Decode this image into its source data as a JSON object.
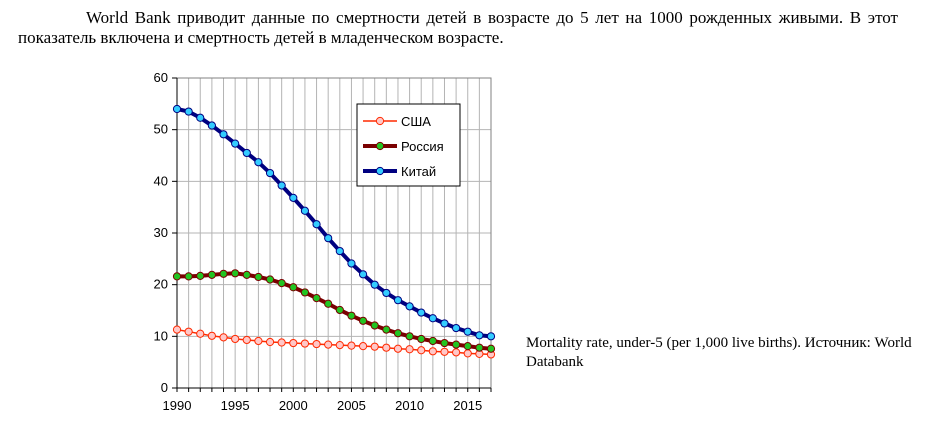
{
  "intro_text": "World Bank приводит данные по смертности детей в возрасте до 5 лет на 1000 рожденных живыми. В этот показатель включена и смертность детей в младенческом возрасте.",
  "caption": "Mortality rate, under-5 (per 1,000 live births). Источник: World Databank",
  "chart_data": {
    "type": "line",
    "title": "",
    "xlabel": "",
    "ylabel": "",
    "xlim": [
      1990,
      2017
    ],
    "ylim": [
      0,
      60
    ],
    "x_ticks": [
      1990,
      1995,
      2000,
      2005,
      2010,
      2015
    ],
    "y_ticks": [
      0,
      10,
      20,
      30,
      40,
      50,
      60
    ],
    "grid": true,
    "legend_position": "top-right",
    "x": [
      1990,
      1991,
      1992,
      1993,
      1994,
      1995,
      1996,
      1997,
      1998,
      1999,
      2000,
      2001,
      2002,
      2003,
      2004,
      2005,
      2006,
      2007,
      2008,
      2009,
      2010,
      2011,
      2012,
      2013,
      2014,
      2015,
      2016,
      2017
    ],
    "series": [
      {
        "name": "США",
        "line_color": "#ff2a00",
        "marker_fill": "#ffc8c8",
        "values": [
          11.3,
          10.9,
          10.5,
          10.1,
          9.8,
          9.5,
          9.3,
          9.1,
          8.9,
          8.8,
          8.7,
          8.6,
          8.5,
          8.4,
          8.3,
          8.2,
          8.1,
          8.0,
          7.8,
          7.6,
          7.5,
          7.3,
          7.1,
          7.0,
          6.9,
          6.7,
          6.6,
          6.5
        ]
      },
      {
        "name": "Россия",
        "line_color": "#7a0000",
        "marker_fill": "#22c422",
        "values": [
          21.6,
          21.6,
          21.7,
          21.9,
          22.1,
          22.2,
          21.9,
          21.5,
          21.0,
          20.3,
          19.5,
          18.5,
          17.4,
          16.3,
          15.1,
          14.0,
          13.0,
          12.1,
          11.3,
          10.6,
          10.0,
          9.5,
          9.1,
          8.7,
          8.4,
          8.1,
          7.8,
          7.6
        ]
      },
      {
        "name": "Китай",
        "line_color": "#000080",
        "marker_fill": "#33ccff",
        "values": [
          54.0,
          53.5,
          52.3,
          50.8,
          49.1,
          47.3,
          45.5,
          43.7,
          41.6,
          39.2,
          36.8,
          34.3,
          31.7,
          29.0,
          26.5,
          24.1,
          22.0,
          20.0,
          18.4,
          17.0,
          15.8,
          14.6,
          13.5,
          12.5,
          11.6,
          10.9,
          10.2,
          10.0
        ]
      }
    ]
  }
}
